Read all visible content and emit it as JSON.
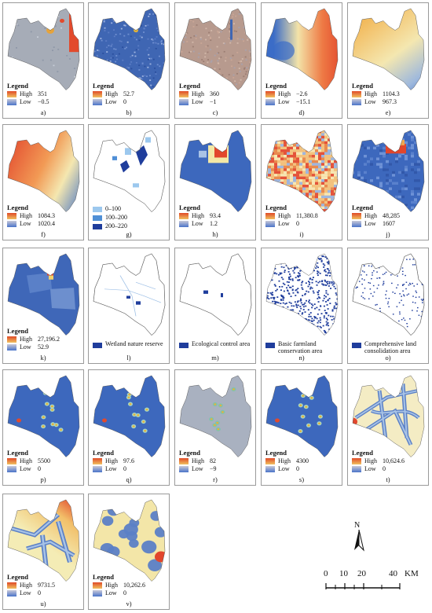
{
  "panels": [
    {
      "id": "a",
      "caption": "a)",
      "legend_title": "Legend",
      "high_label": "High",
      "low_label": "Low",
      "high": "351",
      "low": "−0.5",
      "style": "gray-hot-east"
    },
    {
      "id": "b",
      "caption": "b)",
      "legend_title": "Legend",
      "high_label": "High",
      "low_label": "Low",
      "high": "52.7",
      "low": "0",
      "style": "blue-speckle"
    },
    {
      "id": "c",
      "caption": "c)",
      "legend_title": "Legend",
      "high_label": "High",
      "low_label": "Low",
      "high": "360",
      "low": "−1",
      "style": "brown-speckle"
    },
    {
      "id": "d",
      "caption": "d)",
      "legend_title": "Legend",
      "high_label": "High",
      "low_label": "Low",
      "high": "−2.6",
      "low": "−15.1",
      "style": "blue-center-red-east"
    },
    {
      "id": "e",
      "caption": "e)",
      "legend_title": "Legend",
      "high_label": "High",
      "low_label": "Low",
      "high": "1104.3",
      "low": "967.3",
      "style": "yellow-north-blue-south"
    },
    {
      "id": "f",
      "caption": "f)",
      "legend_title": "Legend",
      "high_label": "High",
      "low_label": "Low",
      "high": "1084.3",
      "low": "1020.4",
      "style": "red-west-blue-east"
    },
    {
      "id": "g",
      "caption": "g)",
      "legend_title": "",
      "categories": [
        {
          "label": "0–100",
          "color": "#9cc8ee"
        },
        {
          "label": "100–200",
          "color": "#4f8fd6"
        },
        {
          "label": "200–220",
          "color": "#1f3d9c"
        }
      ],
      "style": "categorical"
    },
    {
      "id": "h",
      "caption": "h)",
      "legend_title": "Legend",
      "high_label": "High",
      "low_label": "Low",
      "high": "93.4",
      "low": "1.2",
      "style": "blue-center-red"
    },
    {
      "id": "i",
      "caption": "i)",
      "legend_title": "Legend",
      "high_label": "High",
      "low_label": "Low",
      "high": "11,380.8",
      "low": "0",
      "style": "grid-orange"
    },
    {
      "id": "j",
      "caption": "j)",
      "legend_title": "Legend",
      "high_label": "High",
      "low_label": "Low",
      "high": "48,285",
      "low": "1607",
      "style": "blue-grid-red-north"
    },
    {
      "id": "k",
      "caption": "k)",
      "legend_title": "Legend",
      "high_label": "High",
      "low_label": "Low",
      "high": "27,196.2",
      "low": "52.9",
      "style": "blue-zones"
    },
    {
      "id": "l",
      "caption": "l)",
      "legend_title": "",
      "category": "Wetland nature reserve",
      "style": "outline-wetland"
    },
    {
      "id": "m",
      "caption": "m)",
      "legend_title": "",
      "category": "Ecological control area",
      "style": "outline-eco"
    },
    {
      "id": "n",
      "caption": "n)",
      "legend_title": "",
      "category": "Basic farmland conservation area",
      "style": "dense-blue"
    },
    {
      "id": "o",
      "caption": "o)",
      "legend_title": "",
      "category": "Comprehensive land consolidation area",
      "style": "sparse-blue"
    },
    {
      "id": "p",
      "caption": "p)",
      "legend_title": "Legend",
      "high_label": "High",
      "low_label": "Low",
      "high": "5500",
      "low": "0",
      "style": "blue-hotspots"
    },
    {
      "id": "q",
      "caption": "q)",
      "legend_title": "Legend",
      "high_label": "High",
      "low_label": "Low",
      "high": "97.6",
      "low": "0",
      "style": "blue-hotspots"
    },
    {
      "id": "r",
      "caption": "r)",
      "legend_title": "Legend",
      "high_label": "High",
      "low_label": "Low",
      "high": "82",
      "low": "−9",
      "style": "gray-hotspots"
    },
    {
      "id": "s",
      "caption": "s)",
      "legend_title": "Legend",
      "high_label": "High",
      "low_label": "Low",
      "high": "4300",
      "low": "0",
      "style": "blue-hotspots"
    },
    {
      "id": "t",
      "caption": "t)",
      "legend_title": "Legend",
      "high_label": "High",
      "low_label": "Low",
      "high": "10,624.6",
      "low": "0",
      "style": "road-buffer"
    },
    {
      "id": "u",
      "caption": "u)",
      "legend_title": "Legend",
      "high_label": "High",
      "low_label": "Low",
      "high": "9731.5",
      "low": "0",
      "style": "river-buffer"
    },
    {
      "id": "v",
      "caption": "v)",
      "legend_title": "Legend",
      "high_label": "High",
      "low_label": "Low",
      "high": "10,262.6",
      "low": "0",
      "style": "spot-buffer"
    }
  ],
  "north_arrow": {
    "label": "N"
  },
  "scale_bar": {
    "ticks": [
      "0",
      "10",
      "20",
      "40"
    ],
    "unit": "KM"
  },
  "colors": {
    "category_blue": "#1f3d9c",
    "panel_border": "#9a9a9a",
    "legend_high": "#e04a28",
    "legend_low": "#4a74c9"
  }
}
